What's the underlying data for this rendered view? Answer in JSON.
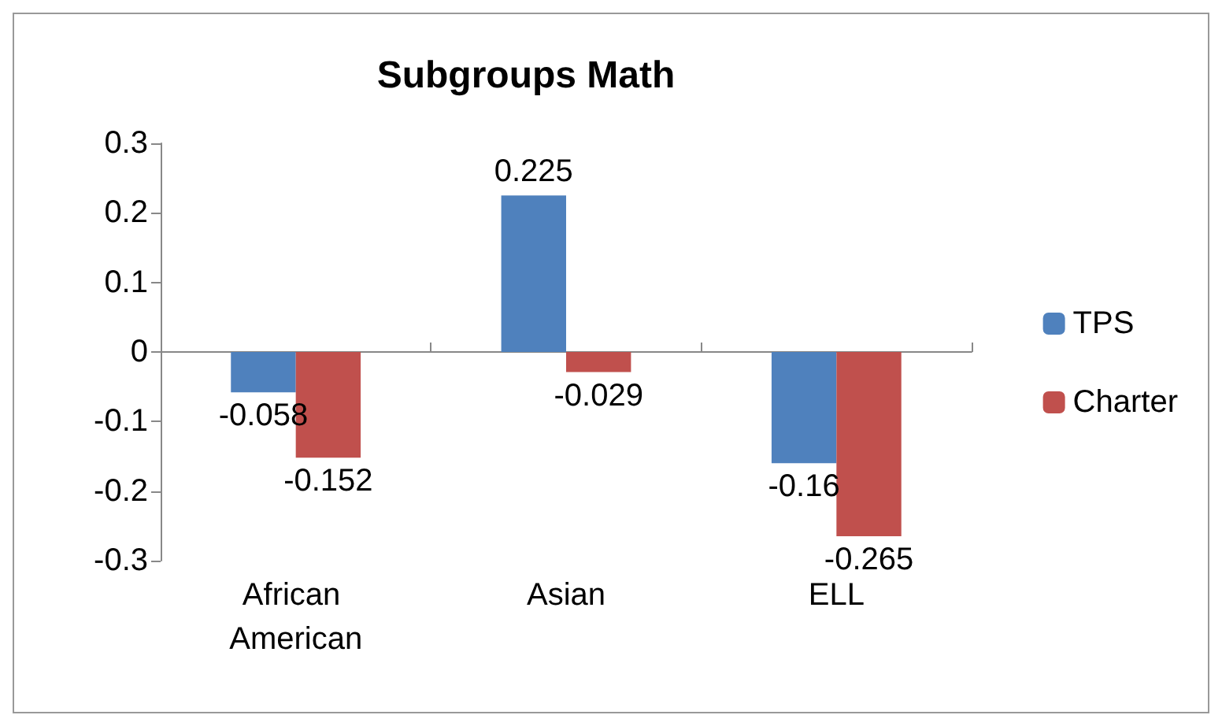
{
  "chart_data": {
    "type": "bar",
    "title": "Subgroups Math",
    "categories": [
      "African American",
      "Asian",
      "ELL"
    ],
    "series": [
      {
        "name": "TPS",
        "color": "#4f81bd",
        "values": [
          -0.058,
          0.225,
          -0.16
        ]
      },
      {
        "name": "Charter",
        "color": "#c0504d",
        "values": [
          -0.152,
          -0.029,
          -0.265
        ]
      }
    ],
    "ylim": [
      -0.3,
      0.3
    ],
    "yticks": [
      -0.3,
      -0.2,
      -0.1,
      0,
      0.1,
      0.2,
      0.3
    ],
    "legend": "right",
    "data_labels": true
  }
}
